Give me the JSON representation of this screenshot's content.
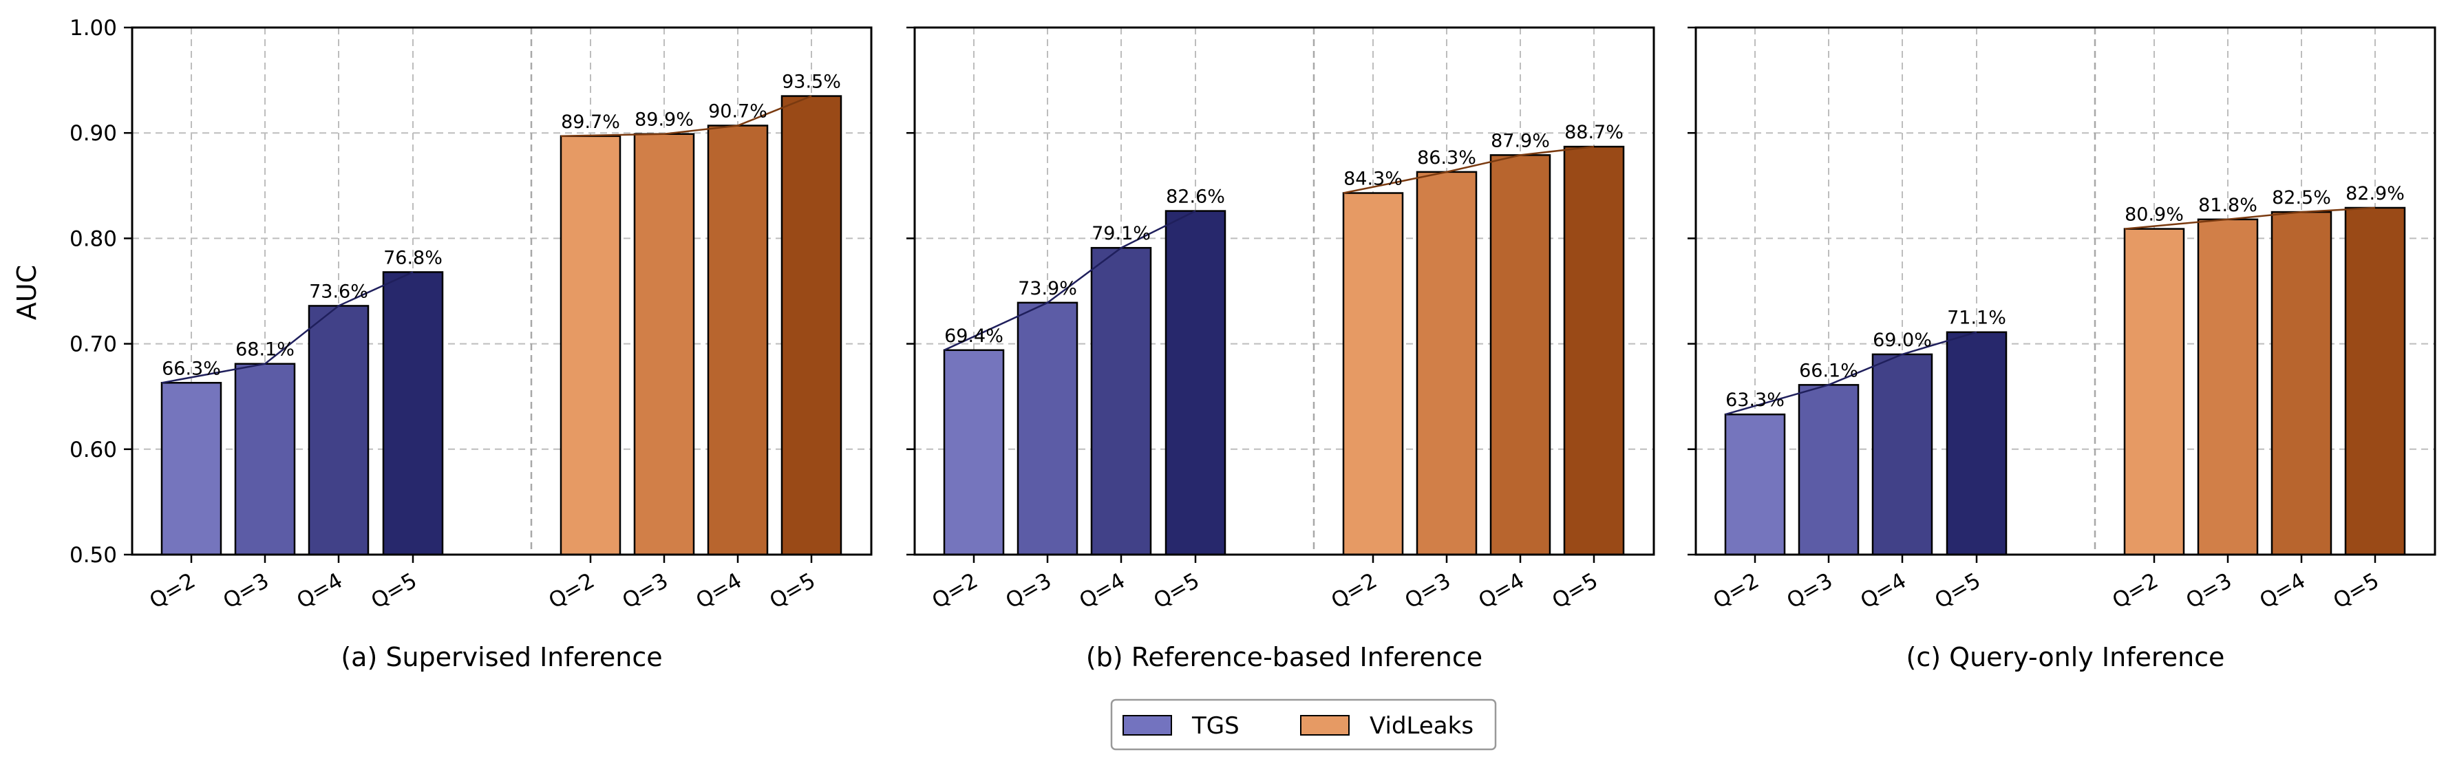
{
  "figure": {
    "ylabel": "AUC",
    "legend": {
      "position": "bottom-center",
      "entries": [
        {
          "name": "TGS",
          "color": "#7373BF"
        },
        {
          "name": "VidLeaks",
          "color": "#E69A64"
        }
      ]
    }
  },
  "chart_data": [
    {
      "type": "bar",
      "title": "(a) Supervised Inference",
      "ylabel": "AUC",
      "ylim": [
        0.5,
        1.0
      ],
      "yticks": [
        "0.50",
        "0.60",
        "0.70",
        "0.80",
        "0.90",
        "1.00"
      ],
      "grid": true,
      "categories": [
        "Q=2",
        "Q=3",
        "Q=4",
        "Q=5"
      ],
      "series": [
        {
          "name": "TGS",
          "values": [
            0.663,
            0.681,
            0.736,
            0.768
          ],
          "labels": [
            "66.3%",
            "68.1%",
            "73.6%",
            "76.8%"
          ]
        },
        {
          "name": "VidLeaks",
          "values": [
            0.897,
            0.899,
            0.907,
            0.935
          ],
          "labels": [
            "89.7%",
            "89.9%",
            "90.7%",
            "93.5%"
          ]
        }
      ]
    },
    {
      "type": "bar",
      "title": "(b) Reference-based Inference",
      "ylabel": "",
      "ylim": [
        0.5,
        1.0
      ],
      "yticks": [
        "0.50",
        "0.60",
        "0.70",
        "0.80",
        "0.90",
        "1.00"
      ],
      "grid": true,
      "categories": [
        "Q=2",
        "Q=3",
        "Q=4",
        "Q=5"
      ],
      "series": [
        {
          "name": "TGS",
          "values": [
            0.694,
            0.739,
            0.791,
            0.826
          ],
          "labels": [
            "69.4%",
            "73.9%",
            "79.1%",
            "82.6%"
          ]
        },
        {
          "name": "VidLeaks",
          "values": [
            0.843,
            0.863,
            0.879,
            0.887
          ],
          "labels": [
            "84.3%",
            "86.3%",
            "87.9%",
            "88.7%"
          ]
        }
      ]
    },
    {
      "type": "bar",
      "title": "(c) Query-only Inference",
      "ylabel": "",
      "ylim": [
        0.5,
        1.0
      ],
      "yticks": [
        "0.50",
        "0.60",
        "0.70",
        "0.80",
        "0.90",
        "1.00"
      ],
      "grid": true,
      "categories": [
        "Q=2",
        "Q=3",
        "Q=4",
        "Q=5"
      ],
      "series": [
        {
          "name": "TGS",
          "values": [
            0.633,
            0.661,
            0.69,
            0.711
          ],
          "labels": [
            "63.3%",
            "66.1%",
            "69.0%",
            "71.1%"
          ]
        },
        {
          "name": "VidLeaks",
          "values": [
            0.809,
            0.818,
            0.825,
            0.829
          ],
          "labels": [
            "80.9%",
            "81.8%",
            "82.5%",
            "82.9%"
          ]
        }
      ]
    }
  ],
  "colors": {
    "tgs": [
      "#7575BD",
      "#5C5CA6",
      "#414188",
      "#27286C"
    ],
    "tgs_line": "#1F1F5C",
    "vidleaks": [
      "#E69A64",
      "#D17F48",
      "#B8652E",
      "#9A4A17"
    ],
    "vidleaks_line": "#7A3A10"
  }
}
